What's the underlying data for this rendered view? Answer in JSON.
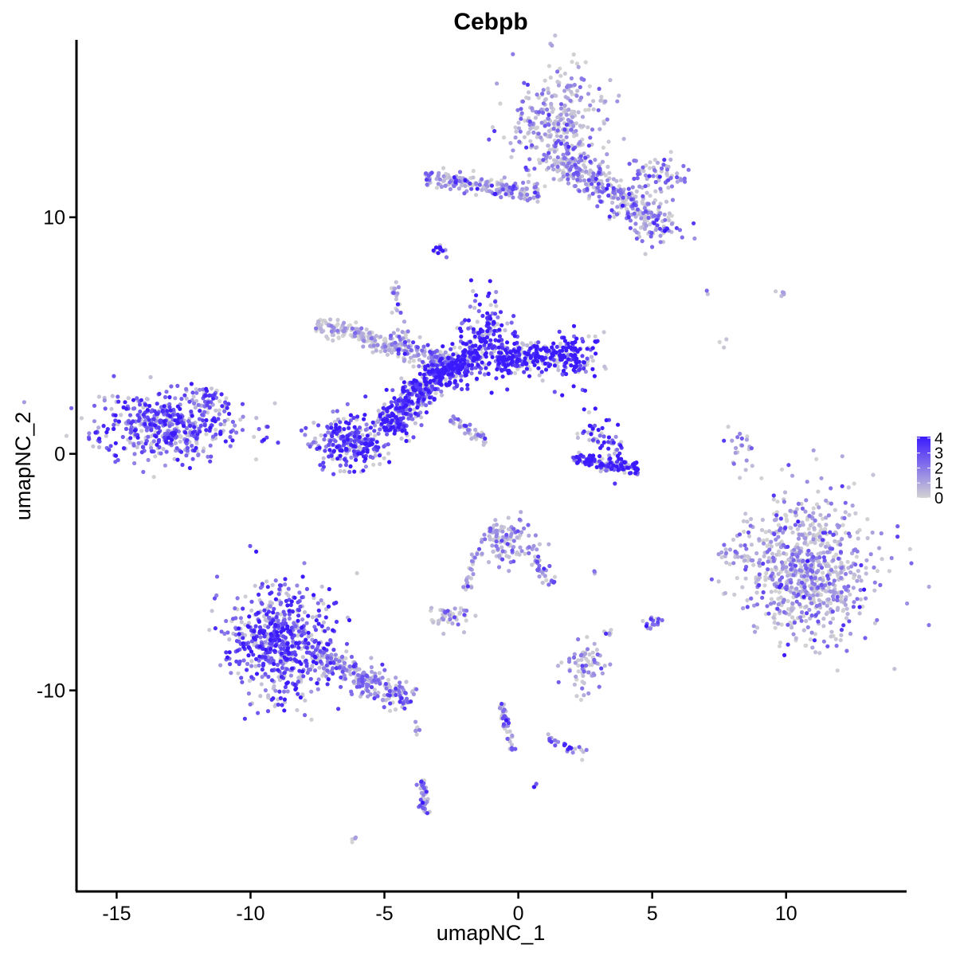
{
  "chart_data": {
    "type": "scatter",
    "title": "Cebpb",
    "xlabel": "umapNC_1",
    "ylabel": "umapNC_2",
    "xlim": [
      -16.5,
      14.5
    ],
    "ylim": [
      -18.5,
      17.5
    ],
    "x_ticks": [
      -15,
      -10,
      -5,
      0,
      5,
      10
    ],
    "x_tick_labels": [
      "-15",
      "-10",
      "-5",
      "0",
      "5",
      "10"
    ],
    "y_ticks": [
      -10,
      0,
      10
    ],
    "y_tick_labels": [
      "-10",
      "0",
      "10"
    ],
    "color_scale": {
      "low_color": "#d3d3d3",
      "high_color": "#3b1aff",
      "min": 0,
      "max": 4.1,
      "legend_ticks": [
        0,
        1,
        2,
        3,
        4
      ],
      "legend_tick_labels": [
        "0",
        "1",
        "2",
        "3",
        "4"
      ],
      "legend_position": "right"
    },
    "clusters": [
      {
        "center": [
          -13.0,
          1.2
        ],
        "spread": [
          1.3,
          0.7
        ],
        "n": 520,
        "expression": 2.8,
        "shape": "ellipse"
      },
      {
        "center": [
          -11.6,
          2.4
        ],
        "spread": [
          0.3,
          0.3
        ],
        "n": 30,
        "expression": 2.7,
        "shape": "ellipse"
      },
      {
        "center": [
          -6.3,
          0.5
        ],
        "spread": [
          0.7,
          0.6
        ],
        "n": 260,
        "expression": 3.0,
        "shape": "ellipse"
      },
      {
        "from": [
          -5.0,
          1.0
        ],
        "to": [
          -3.5,
          3.0
        ],
        "width": 0.7,
        "n": 300,
        "expression": 3.3,
        "shape": "band"
      },
      {
        "from": [
          -3.5,
          3.0
        ],
        "to": [
          -1.5,
          4.2
        ],
        "width": 0.6,
        "n": 320,
        "expression": 3.6,
        "shape": "band"
      },
      {
        "center": [
          -1.2,
          5.0
        ],
        "spread": [
          0.5,
          0.9
        ],
        "n": 170,
        "expression": 3.7,
        "shape": "ellipse"
      },
      {
        "from": [
          -0.8,
          4.0
        ],
        "to": [
          2.2,
          4.2
        ],
        "width": 0.6,
        "n": 260,
        "expression": 3.8,
        "shape": "band"
      },
      {
        "center": [
          2.2,
          4.0
        ],
        "spread": [
          0.5,
          0.5
        ],
        "n": 80,
        "expression": 3.7,
        "shape": "ellipse"
      },
      {
        "from": [
          -7.5,
          5.5
        ],
        "to": [
          -4.5,
          4.5
        ],
        "width": 0.4,
        "n": 170,
        "expression": 0.6,
        "shape": "band"
      },
      {
        "from": [
          -4.5,
          4.5
        ],
        "to": [
          -2.5,
          3.8
        ],
        "width": 0.5,
        "n": 120,
        "expression": 1.6,
        "shape": "band"
      },
      {
        "from": [
          -4.7,
          7.5
        ],
        "to": [
          -4.2,
          4.5
        ],
        "width": 0.2,
        "n": 30,
        "expression": 1.5,
        "shape": "band"
      },
      {
        "from": [
          -2.5,
          1.5
        ],
        "to": [
          -1.2,
          0.5
        ],
        "width": 0.2,
        "n": 45,
        "expression": 1.3,
        "shape": "band"
      },
      {
        "center": [
          -2.9,
          8.6
        ],
        "spread": [
          0.15,
          0.15
        ],
        "n": 14,
        "expression": 4.0,
        "shape": "ellipse"
      },
      {
        "center": [
          1.5,
          14.0
        ],
        "spread": [
          0.9,
          1.2
        ],
        "n": 330,
        "expression": 1.4,
        "shape": "ellipse"
      },
      {
        "from": [
          -3.5,
          11.7
        ],
        "to": [
          0.8,
          11.0
        ],
        "width": 0.4,
        "n": 190,
        "expression": 1.3,
        "shape": "band"
      },
      {
        "from": [
          1.5,
          12.5
        ],
        "to": [
          5.0,
          10.0
        ],
        "width": 0.7,
        "n": 260,
        "expression": 1.6,
        "shape": "band"
      },
      {
        "center": [
          5.2,
          11.8
        ],
        "spread": [
          0.5,
          0.4
        ],
        "n": 70,
        "expression": 1.8,
        "shape": "ellipse"
      },
      {
        "center": [
          5.2,
          9.6
        ],
        "spread": [
          0.6,
          0.4
        ],
        "n": 70,
        "expression": 1.8,
        "shape": "ellipse"
      },
      {
        "center": [
          3.2,
          0.5
        ],
        "spread": [
          0.4,
          0.6
        ],
        "n": 60,
        "expression": 3.4,
        "shape": "ellipse"
      },
      {
        "from": [
          2.0,
          -0.2
        ],
        "to": [
          4.5,
          -0.6
        ],
        "width": 0.3,
        "n": 120,
        "expression": 3.8,
        "shape": "band"
      },
      {
        "center": [
          10.8,
          -4.8
        ],
        "spread": [
          1.2,
          1.5
        ],
        "n": 780,
        "expression": 1.3,
        "shape": "ellipse"
      },
      {
        "center": [
          8.3,
          0.2
        ],
        "spread": [
          0.2,
          0.6
        ],
        "n": 22,
        "expression": 1.3,
        "shape": "ellipse"
      },
      {
        "center": [
          -8.8,
          -8.0
        ],
        "spread": [
          1.0,
          1.2
        ],
        "n": 640,
        "expression": 3.0,
        "shape": "ellipse"
      },
      {
        "from": [
          -7.5,
          -8.5
        ],
        "to": [
          -4.0,
          -10.5
        ],
        "width": 0.6,
        "n": 230,
        "expression": 1.8,
        "shape": "band"
      },
      {
        "center": [
          -0.5,
          -3.6
        ],
        "spread": [
          0.5,
          0.5
        ],
        "n": 110,
        "expression": 1.2,
        "shape": "ellipse"
      },
      {
        "from": [
          -1.5,
          -4.0
        ],
        "to": [
          -2.0,
          -5.8
        ],
        "width": 0.2,
        "n": 25,
        "expression": 1.0,
        "shape": "band"
      },
      {
        "from": [
          0.3,
          -4.0
        ],
        "to": [
          1.3,
          -5.5
        ],
        "width": 0.3,
        "n": 35,
        "expression": 1.8,
        "shape": "band"
      },
      {
        "center": [
          -2.6,
          -6.9
        ],
        "spread": [
          0.35,
          0.25
        ],
        "n": 45,
        "expression": 1.1,
        "shape": "ellipse"
      },
      {
        "center": [
          2.5,
          -9.0
        ],
        "spread": [
          0.4,
          0.5
        ],
        "n": 70,
        "expression": 1.1,
        "shape": "ellipse"
      },
      {
        "from": [
          -0.6,
          -10.5
        ],
        "to": [
          -0.2,
          -12.5
        ],
        "width": 0.2,
        "n": 40,
        "expression": 1.9,
        "shape": "band"
      },
      {
        "from": [
          1.0,
          -12.0
        ],
        "to": [
          2.5,
          -12.7
        ],
        "width": 0.2,
        "n": 25,
        "expression": 2.5,
        "shape": "band"
      },
      {
        "from": [
          -3.6,
          -13.8
        ],
        "to": [
          -3.5,
          -15.3
        ],
        "width": 0.2,
        "n": 40,
        "expression": 2.0,
        "shape": "band"
      },
      {
        "center": [
          -3.8,
          -11.7
        ],
        "spread": [
          0.05,
          0.15
        ],
        "n": 6,
        "expression": 2.5,
        "shape": "ellipse"
      },
      {
        "center": [
          5.0,
          -7.2
        ],
        "spread": [
          0.15,
          0.2
        ],
        "n": 16,
        "expression": 2.5,
        "shape": "ellipse"
      },
      {
        "center": [
          3.4,
          -7.6
        ],
        "spread": [
          0.1,
          0.1
        ],
        "n": 6,
        "expression": 1.5,
        "shape": "ellipse"
      },
      {
        "center": [
          8.1,
          -4.4
        ],
        "spread": [
          0.3,
          0.3
        ],
        "n": 20,
        "expression": 1.2,
        "shape": "ellipse"
      },
      {
        "center": [
          0.6,
          -14.0
        ],
        "spread": [
          0.05,
          0.05
        ],
        "n": 4,
        "expression": 2.5,
        "shape": "ellipse"
      },
      {
        "center": [
          -6.1,
          -16.3
        ],
        "spread": [
          0.05,
          0.05
        ],
        "n": 4,
        "expression": 2.0,
        "shape": "ellipse"
      },
      {
        "center": [
          9.8,
          6.8
        ],
        "spread": [
          0.2,
          0.1
        ],
        "n": 5,
        "expression": 1.5,
        "shape": "ellipse"
      },
      {
        "center": [
          7.7,
          4.8
        ],
        "spread": [
          0.05,
          0.1
        ],
        "n": 3,
        "expression": 0.7,
        "shape": "ellipse"
      },
      {
        "center": [
          7.0,
          6.9
        ],
        "spread": [
          0.05,
          0.05
        ],
        "n": 2,
        "expression": 1.8,
        "shape": "ellipse"
      },
      {
        "center": [
          2.8,
          -5.0
        ],
        "spread": [
          0.05,
          0.05
        ],
        "n": 3,
        "expression": 1.0,
        "shape": "ellipse"
      }
    ]
  }
}
